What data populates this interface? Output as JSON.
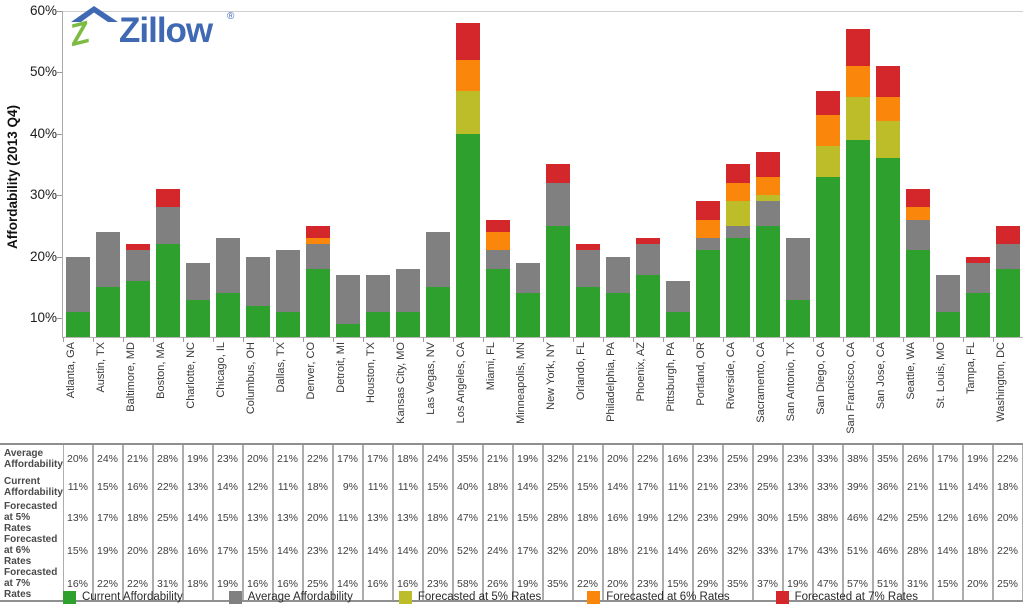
{
  "logo": {
    "brand": "Zillow",
    "registered": "®",
    "blue": "#4069B4",
    "green": "#7DBB42"
  },
  "chart_data": {
    "type": "bar",
    "title": "",
    "xlabel": "",
    "ylabel": "Affordability (2013 Q4)",
    "y_ticks": [
      "10%",
      "20%",
      "30%",
      "40%",
      "50%",
      "60%"
    ],
    "ylim": [
      6.9,
      61
    ],
    "grid": "top-line-only",
    "legend_position": "bottom",
    "bar_style": "overlaid-full-height-painted-in-order-7pct,6pct,5pct,average,current",
    "categories": [
      "Atlanta, GA",
      "Austin, TX",
      "Baltimore, MD",
      "Boston, MA",
      "Charlotte, NC",
      "Chicago, IL",
      "Columbus, OH",
      "Dallas, TX",
      "Denver, CO",
      "Detroit, MI",
      "Houston, TX",
      "Kansas City, MO",
      "Las Vegas, NV",
      "Los Angeles, CA",
      "Miami, FL",
      "Minneapolis, MN",
      "New York, NY",
      "Orlando, FL",
      "Philadelphia, PA",
      "Phoenix, AZ",
      "Pittsburgh, PA",
      "Portland, OR",
      "Riverside, CA",
      "Sacramento, CA",
      "San Antonio, TX",
      "San Diego, CA",
      "San Francisco, CA",
      "San Jose, CA",
      "Seattle, WA",
      "St. Louis, MO",
      "Tampa, FL",
      "Washington, DC"
    ],
    "series": [
      {
        "name": "Average Affordability",
        "color": "#808080",
        "values": [
          20,
          24,
          21,
          28,
          19,
          23,
          20,
          21,
          22,
          17,
          17,
          18,
          24,
          35,
          21,
          19,
          32,
          21,
          20,
          22,
          16,
          23,
          25,
          29,
          23,
          33,
          38,
          35,
          26,
          17,
          19,
          22
        ]
      },
      {
        "name": "Current Affordability",
        "color": "#2DA02D",
        "values": [
          11,
          15,
          16,
          22,
          13,
          14,
          12,
          11,
          18,
          9,
          11,
          11,
          15,
          40,
          18,
          14,
          25,
          15,
          14,
          17,
          11,
          21,
          23,
          25,
          13,
          33,
          39,
          36,
          21,
          11,
          14,
          18
        ]
      },
      {
        "name": "Forecasted at 5% Rates",
        "color": "#BCBD29",
        "values": [
          13,
          17,
          18,
          25,
          14,
          15,
          13,
          13,
          20,
          11,
          13,
          13,
          18,
          47,
          21,
          15,
          28,
          18,
          16,
          19,
          12,
          23,
          29,
          30,
          15,
          38,
          46,
          42,
          25,
          12,
          16,
          20
        ]
      },
      {
        "name": "Forecasted at 6% Rates",
        "color": "#FA860B",
        "values": [
          15,
          19,
          20,
          28,
          16,
          17,
          15,
          14,
          23,
          12,
          14,
          14,
          20,
          52,
          24,
          17,
          32,
          20,
          18,
          21,
          14,
          26,
          32,
          33,
          17,
          43,
          51,
          46,
          28,
          14,
          18,
          22
        ]
      },
      {
        "name": "Forecasted at 7% Rates",
        "color": "#D3272B",
        "values": [
          16,
          22,
          22,
          31,
          18,
          19,
          16,
          16,
          25,
          14,
          16,
          16,
          23,
          58,
          26,
          19,
          35,
          22,
          20,
          23,
          15,
          29,
          35,
          37,
          19,
          47,
          57,
          51,
          31,
          15,
          20,
          25
        ]
      }
    ]
  },
  "table": {
    "row_labels": [
      "Average Affordability",
      "Current Affordability",
      "Forecasted at 5% Rates",
      "Forecasted at 6% Rates",
      "Forecasted at 7% Rates"
    ],
    "unit": "%"
  },
  "legend": {
    "items": [
      {
        "label": "Current Affordability",
        "color": "#2DA02D"
      },
      {
        "label": "Average Affordability",
        "color": "#808080"
      },
      {
        "label": "Forecasted at 5% Rates",
        "color": "#BCBD29"
      },
      {
        "label": "Forecasted at 6% Rates",
        "color": "#FA860B"
      },
      {
        "label": "Forecasted at 7% Rates",
        "color": "#D3272B"
      }
    ]
  }
}
